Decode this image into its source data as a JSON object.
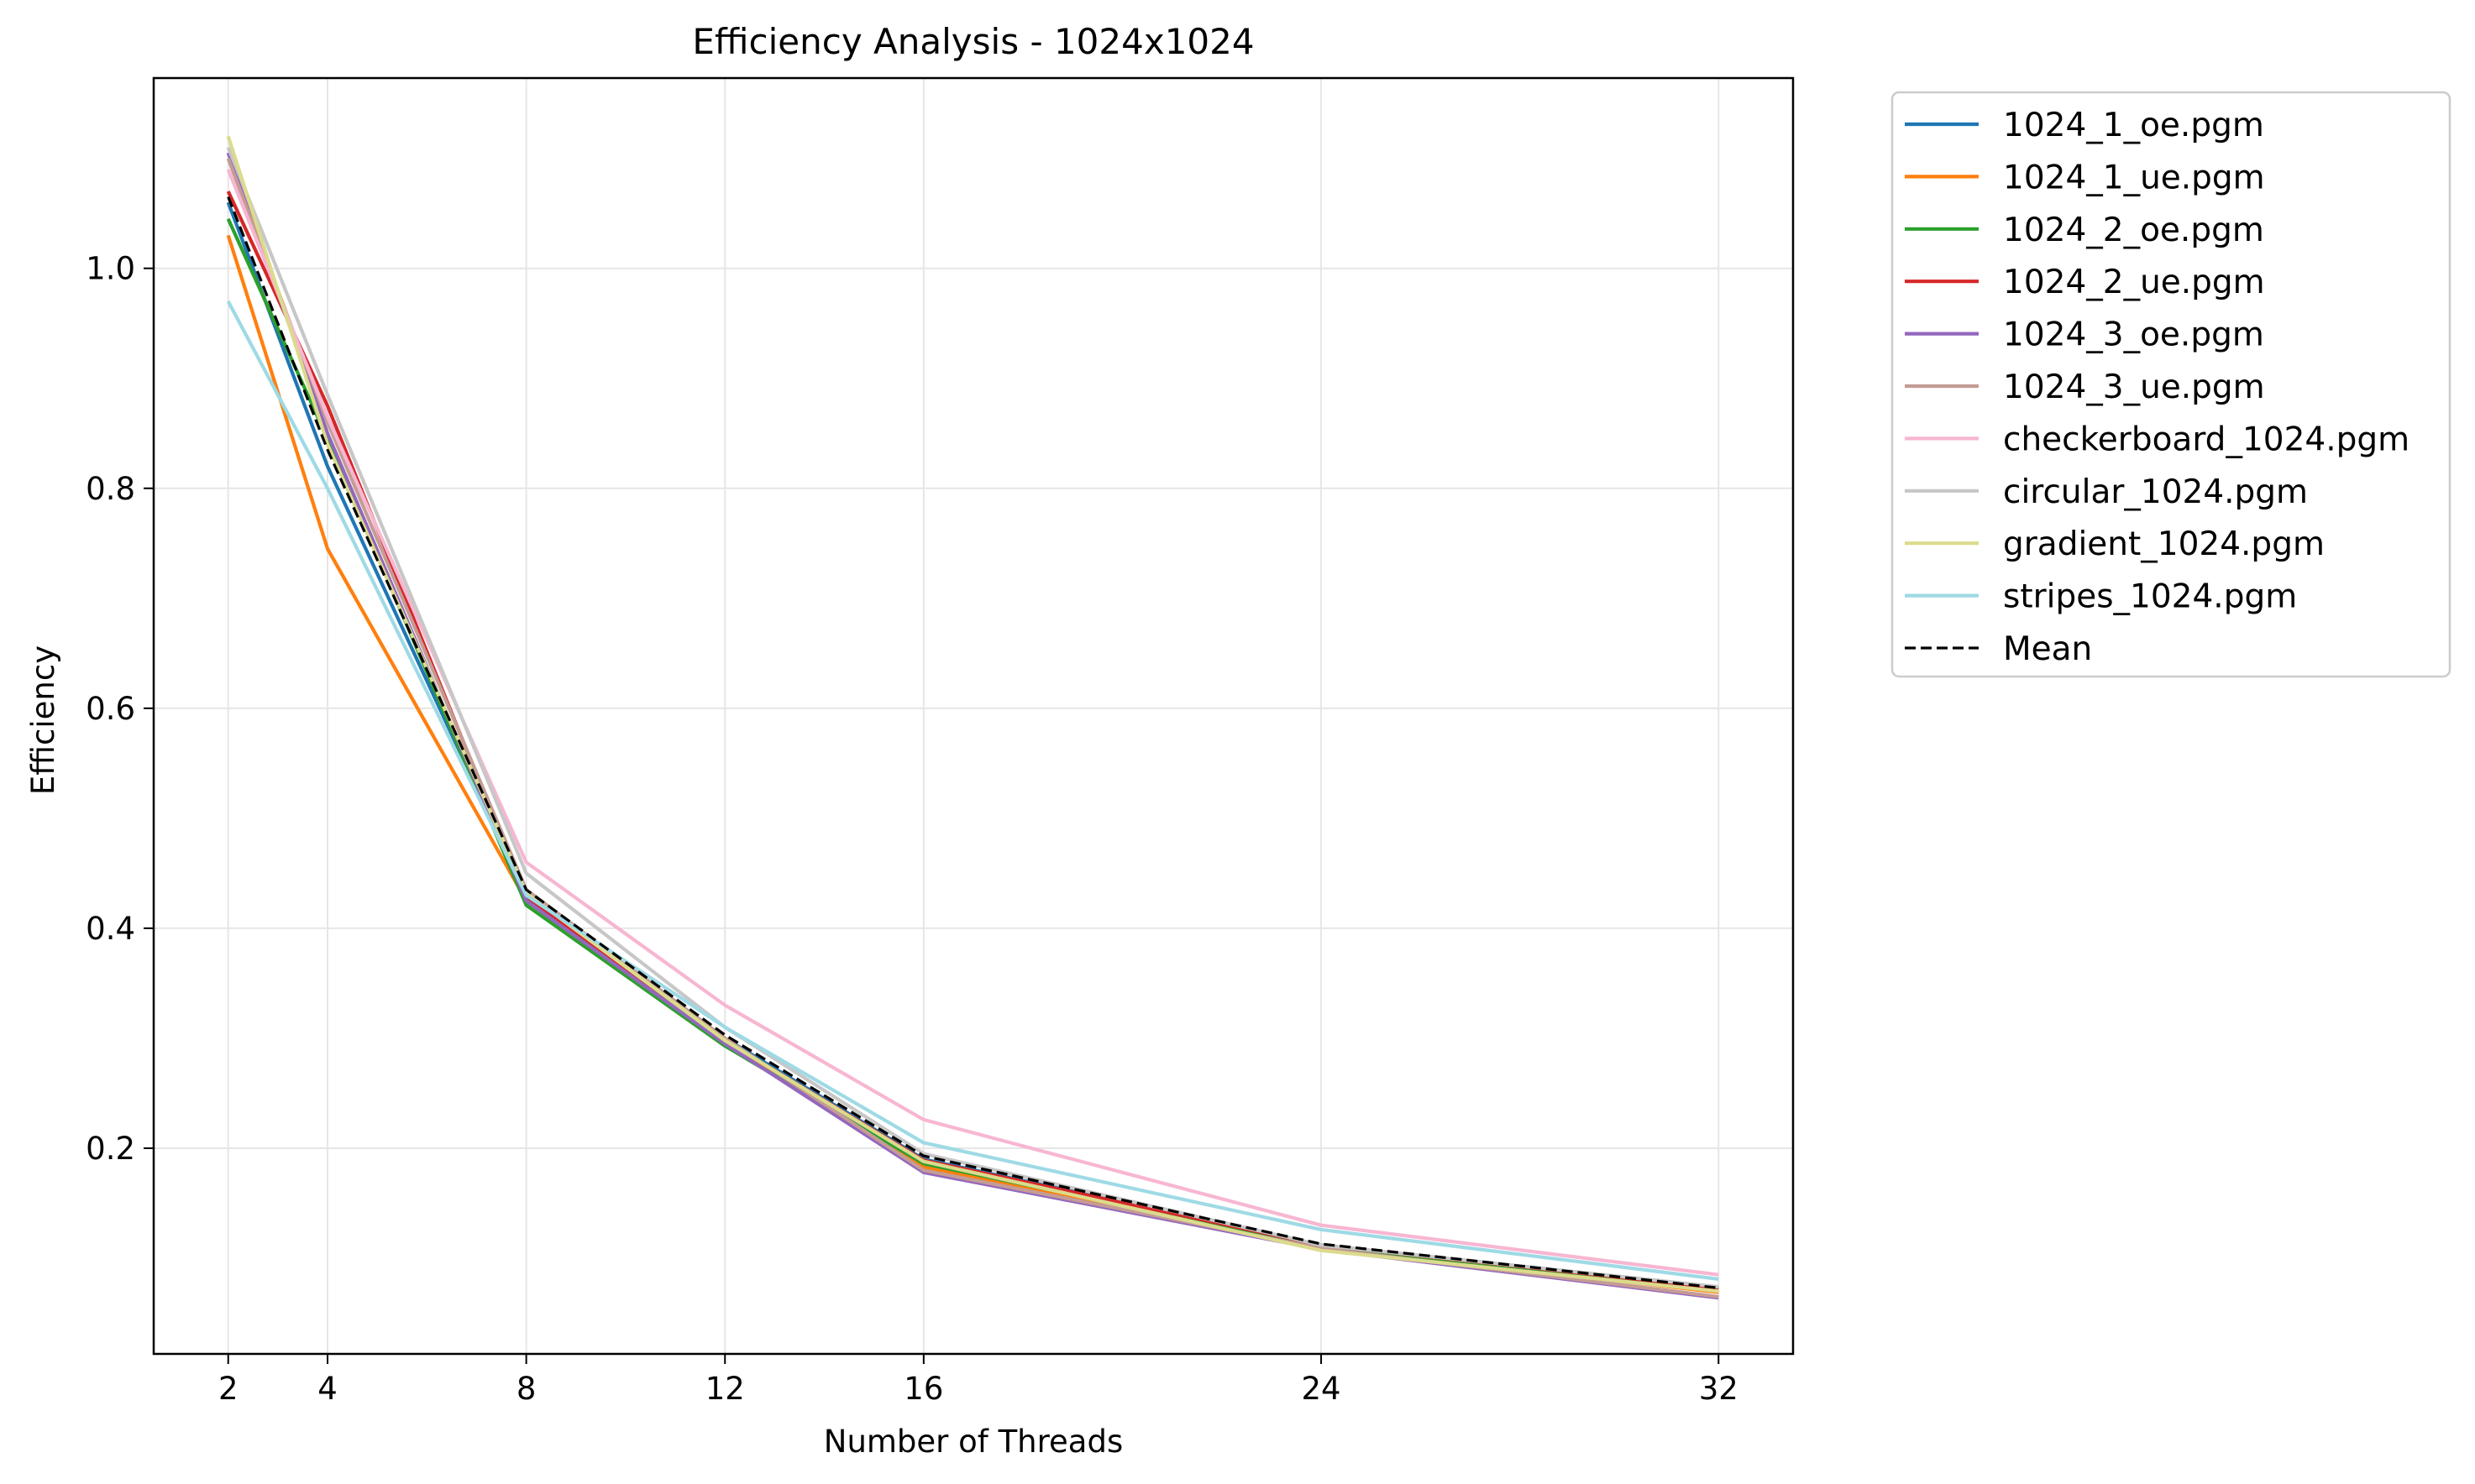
{
  "chart_data": {
    "type": "line",
    "title": "Efficiency Analysis - 1024x1024",
    "xlabel": "Number of Threads",
    "ylabel": "Efficiency",
    "x": [
      2,
      4,
      8,
      12,
      16,
      24,
      32
    ],
    "xticks": [
      2,
      4,
      8,
      12,
      16,
      24,
      32
    ],
    "yticks": [
      0.2,
      0.4,
      0.6,
      0.8,
      1.0
    ],
    "ytick_labels": [
      "0.2",
      "0.4",
      "0.6",
      "0.8",
      "1.0"
    ],
    "xlim": [
      0.5,
      33.5
    ],
    "ylim": [
      0.013,
      1.173
    ],
    "grid": true,
    "legend_position": "outside-right",
    "series": [
      {
        "name": "1024_1_oe.pgm",
        "color": "#1f77b4",
        "style": "solid",
        "values": [
          1.06,
          0.82,
          0.43,
          0.3,
          0.19,
          0.112,
          0.072
        ]
      },
      {
        "name": "1024_1_ue.pgm",
        "color": "#ff7f0e",
        "style": "solid",
        "values": [
          1.03,
          0.745,
          0.425,
          0.297,
          0.183,
          0.11,
          0.069
        ]
      },
      {
        "name": "1024_2_oe.pgm",
        "color": "#2ca02c",
        "style": "solid",
        "values": [
          1.045,
          0.845,
          0.421,
          0.293,
          0.186,
          0.111,
          0.072
        ]
      },
      {
        "name": "1024_2_ue.pgm",
        "color": "#d62728",
        "style": "solid",
        "values": [
          1.07,
          0.875,
          0.428,
          0.298,
          0.189,
          0.112,
          0.073
        ]
      },
      {
        "name": "1024_3_oe.pgm",
        "color": "#9467bd",
        "style": "solid",
        "values": [
          1.105,
          0.85,
          0.425,
          0.295,
          0.178,
          0.108,
          0.064
        ]
      },
      {
        "name": "1024_3_ue.pgm",
        "color": "#c49c94",
        "style": "solid",
        "values": [
          1.1,
          0.86,
          0.435,
          0.3,
          0.18,
          0.109,
          0.065
        ]
      },
      {
        "name": "checkerboard_1024.pgm",
        "color": "#f7b6d2",
        "style": "solid",
        "values": [
          1.09,
          0.865,
          0.46,
          0.33,
          0.226,
          0.13,
          0.085
        ]
      },
      {
        "name": "circular_1024.pgm",
        "color": "#c7c7c7",
        "style": "solid",
        "values": [
          1.11,
          0.885,
          0.45,
          0.31,
          0.195,
          0.112,
          0.074
        ]
      },
      {
        "name": "gradient_1024.pgm",
        "color": "#dbdb8d",
        "style": "solid",
        "values": [
          1.12,
          0.84,
          0.432,
          0.298,
          0.188,
          0.107,
          0.07
        ]
      },
      {
        "name": "stripes_1024.pgm",
        "color": "#9edae5",
        "style": "solid",
        "values": [
          0.97,
          0.8,
          0.43,
          0.31,
          0.205,
          0.126,
          0.081
        ]
      },
      {
        "name": "Mean",
        "color": "#000000",
        "style": "dashed",
        "values": [
          1.065,
          0.835,
          0.435,
          0.303,
          0.193,
          0.113,
          0.073
        ]
      }
    ]
  }
}
